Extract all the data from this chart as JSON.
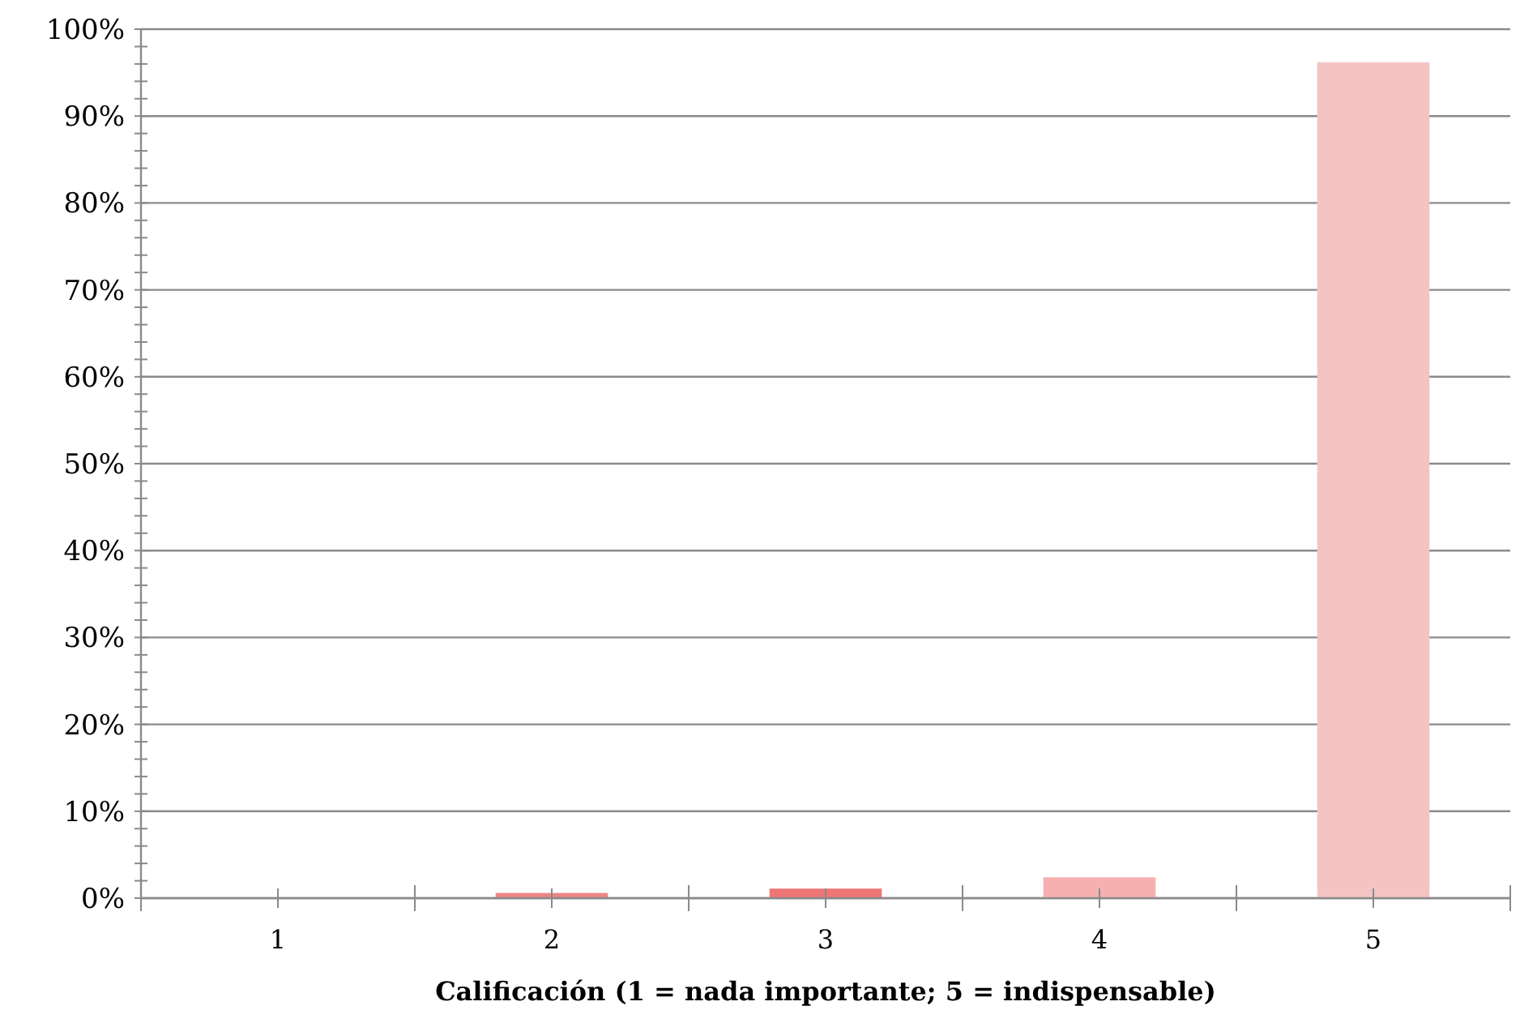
{
  "chart_data": {
    "type": "bar",
    "xlabel": "Calificación (1 = nada importante; 5 = indispensable)",
    "categories": [
      "1",
      "2",
      "3",
      "4",
      "5"
    ],
    "values": [
      0,
      0.6,
      1.1,
      2.4,
      96.2
    ],
    "colors": [
      "#f5c3c3",
      "#ee8585",
      "#ef7676",
      "#f6b0b0",
      "#f4c4c4"
    ],
    "ylim": [
      0,
      100
    ],
    "yticks": [
      {
        "value": 0,
        "label": "0%"
      },
      {
        "value": 2,
        "label": null
      },
      {
        "value": 4,
        "label": null
      },
      {
        "value": 6,
        "label": null
      },
      {
        "value": 8,
        "label": null
      },
      {
        "value": 10,
        "label": "10%"
      },
      {
        "value": 12,
        "label": null
      },
      {
        "value": 14,
        "label": null
      },
      {
        "value": 16,
        "label": null
      },
      {
        "value": 18,
        "label": null
      },
      {
        "value": 20,
        "label": "20%"
      },
      {
        "value": 22,
        "label": null
      },
      {
        "value": 24,
        "label": null
      },
      {
        "value": 26,
        "label": null
      },
      {
        "value": 28,
        "label": null
      },
      {
        "value": 30,
        "label": "30%"
      },
      {
        "value": 32,
        "label": null
      },
      {
        "value": 34,
        "label": null
      },
      {
        "value": 36,
        "label": null
      },
      {
        "value": 38,
        "label": null
      },
      {
        "value": 40,
        "label": "40%"
      },
      {
        "value": 42,
        "label": null
      },
      {
        "value": 44,
        "label": null
      },
      {
        "value": 46,
        "label": null
      },
      {
        "value": 48,
        "label": null
      },
      {
        "value": 50,
        "label": "50%"
      },
      {
        "value": 52,
        "label": null
      },
      {
        "value": 54,
        "label": null
      },
      {
        "value": 56,
        "label": null
      },
      {
        "value": 58,
        "label": null
      },
      {
        "value": 60,
        "label": "60%"
      },
      {
        "value": 62,
        "label": null
      },
      {
        "value": 64,
        "label": null
      },
      {
        "value": 66,
        "label": null
      },
      {
        "value": 68,
        "label": null
      },
      {
        "value": 70,
        "label": "70%"
      },
      {
        "value": 72,
        "label": null
      },
      {
        "value": 74,
        "label": null
      },
      {
        "value": 76,
        "label": null
      },
      {
        "value": 78,
        "label": null
      },
      {
        "value": 80,
        "label": "80%"
      },
      {
        "value": 82,
        "label": null
      },
      {
        "value": 84,
        "label": null
      },
      {
        "value": 86,
        "label": null
      },
      {
        "value": 88,
        "label": null
      },
      {
        "value": 90,
        "label": "90%"
      },
      {
        "value": 92,
        "label": null
      },
      {
        "value": 94,
        "label": null
      },
      {
        "value": 96,
        "label": null
      },
      {
        "value": 98,
        "label": null
      },
      {
        "value": 100,
        "label": "100%"
      }
    ],
    "grid": "y"
  }
}
